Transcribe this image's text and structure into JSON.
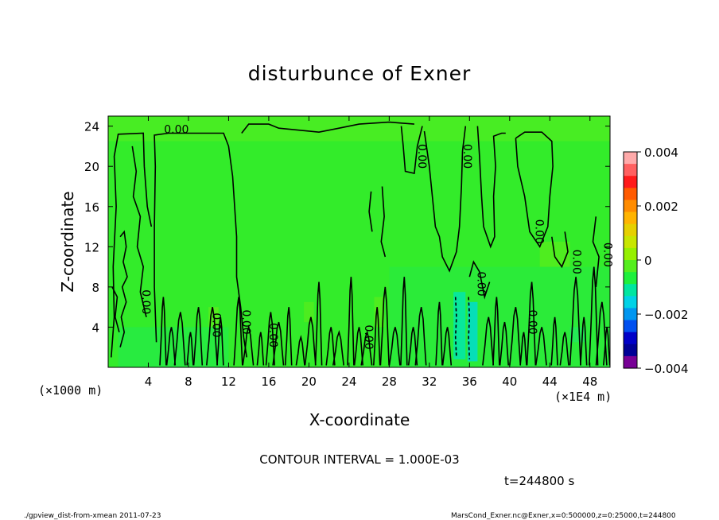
{
  "chart_data": {
    "type": "heatmap",
    "title": "disturbunce of Exner",
    "xlabel": "X-coordinate",
    "ylabel": "Z-coordinate",
    "x_unit": "(×1E4 m)",
    "y_unit": "(×1000 m)",
    "xlim": [
      0,
      50
    ],
    "ylim": [
      0,
      25
    ],
    "x_ticks": [
      4,
      8,
      12,
      16,
      20,
      24,
      28,
      32,
      36,
      40,
      44,
      48
    ],
    "y_ticks": [
      4,
      8,
      12,
      16,
      20,
      24
    ],
    "colorbar": {
      "range": [
        -0.004,
        0.004
      ],
      "tick_labels": [
        "0.004",
        "0.002",
        "0",
        "−0.002",
        "−0.004"
      ],
      "colors": [
        "#ffaaaa",
        "#ff6060",
        "#ff1a1a",
        "#ff5a00",
        "#ff8c00",
        "#ffb400",
        "#e6d000",
        "#c8e600",
        "#96f000",
        "#55ee1e",
        "#1ef03c",
        "#00e6a0",
        "#00d2e6",
        "#0096f0",
        "#0050f0",
        "#0000c8",
        "#000096",
        "#780096"
      ]
    },
    "background_value": 0,
    "contour_interval": "CONTOUR INTERVAL = 1.000E-03",
    "contour_label": "0.00",
    "time": "t=244800 s",
    "grid": false
  },
  "footer": {
    "left": "./gpview_dist-from-xmean  2011-07-23",
    "right": "MarsCond_Exner.nc@Exner,x=0:500000,z=0:25000,t=244800"
  }
}
